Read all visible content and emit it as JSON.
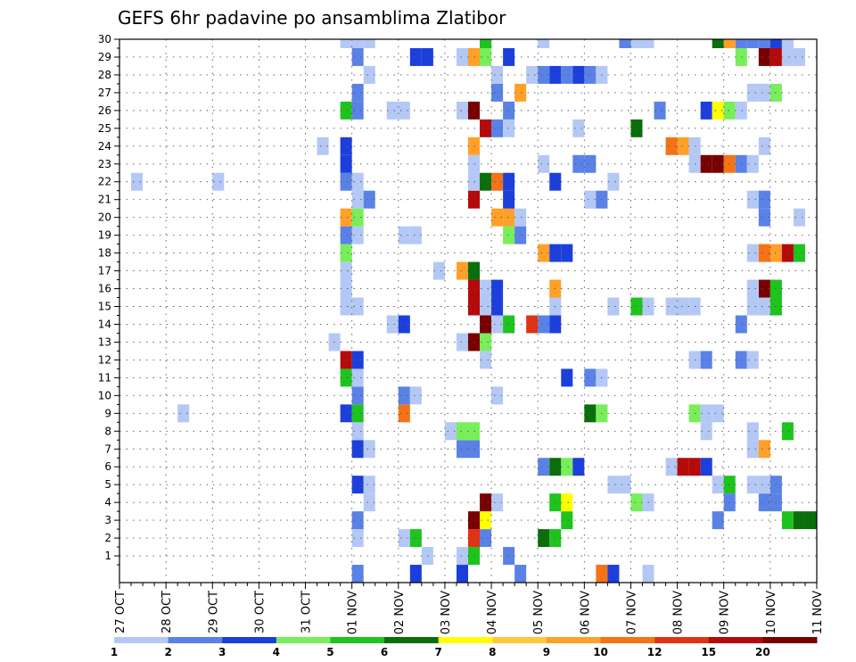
{
  "chart_data": {
    "type": "heatmap",
    "title": "GEFS 6hr padavine po ansamblima Zlatibor",
    "y_ticks": [
      "1",
      "2",
      "3",
      "4",
      "5",
      "6",
      "7",
      "8",
      "9",
      "10",
      "11",
      "12",
      "13",
      "14",
      "15",
      "16",
      "17",
      "18",
      "19",
      "20",
      "21",
      "22",
      "23",
      "24",
      "25",
      "26",
      "27",
      "28",
      "29",
      "30"
    ],
    "x_ticks": [
      "27 OCT",
      "28 OCT",
      "29 OCT",
      "30 OCT",
      "31 OCT",
      "01 NOV",
      "02 NOV",
      "03 NOV",
      "04 NOV",
      "05 NOV",
      "06 NOV",
      "07 NOV",
      "08 NOV",
      "09 NOV",
      "10 NOV",
      "11 NOV"
    ],
    "x_steps_per_day": 4,
    "x_total_steps": 60,
    "y_min": 0,
    "y_max": 30,
    "colorbar": {
      "labels": [
        "1",
        "2",
        "3",
        "4",
        "5",
        "6",
        "7",
        "8",
        "9",
        "10",
        "12",
        "15",
        "20"
      ],
      "colors": [
        "#b4c8f5",
        "#5a82e6",
        "#1c3fdc",
        "#78ee5a",
        "#1ec31e",
        "#0a6e0a",
        "#ffff00",
        "#ffc83c",
        "#ffa028",
        "#f57314",
        "#e13214",
        "#b40a0a",
        "#780000"
      ]
    },
    "cells": [
      {
        "row": 0,
        "col": 20,
        "level": 2
      },
      {
        "row": 0,
        "col": 25,
        "level": 3
      },
      {
        "row": 0,
        "col": 29,
        "level": 3
      },
      {
        "row": 0,
        "col": 34,
        "level": 2
      },
      {
        "row": 0,
        "col": 41,
        "level": 10
      },
      {
        "row": 0,
        "col": 42,
        "level": 3
      },
      {
        "row": 0,
        "col": 45,
        "level": 1
      },
      {
        "row": 1,
        "col": 26,
        "level": 1
      },
      {
        "row": 1,
        "col": 29,
        "level": 1
      },
      {
        "row": 1,
        "col": 30,
        "level": 5
      },
      {
        "row": 1,
        "col": 33,
        "level": 2
      },
      {
        "row": 2,
        "col": 20,
        "level": 1
      },
      {
        "row": 2,
        "col": 24,
        "level": 1
      },
      {
        "row": 2,
        "col": 25,
        "level": 5
      },
      {
        "row": 2,
        "col": 30,
        "level": 12
      },
      {
        "row": 2,
        "col": 31,
        "level": 2
      },
      {
        "row": 2,
        "col": 36,
        "level": 6
      },
      {
        "row": 2,
        "col": 37,
        "level": 5
      },
      {
        "row": 3,
        "col": 20,
        "level": 2
      },
      {
        "row": 3,
        "col": 30,
        "level": 20
      },
      {
        "row": 3,
        "col": 31,
        "level": 7
      },
      {
        "row": 3,
        "col": 38,
        "level": 5
      },
      {
        "row": 3,
        "col": 51,
        "level": 2
      },
      {
        "row": 3,
        "col": 57,
        "level": 5
      },
      {
        "row": 3,
        "col": 58,
        "level": 6
      },
      {
        "row": 3,
        "col": 59,
        "level": 6
      },
      {
        "row": 4,
        "col": 21,
        "level": 1
      },
      {
        "row": 4,
        "col": 31,
        "level": 20
      },
      {
        "row": 4,
        "col": 32,
        "level": 1
      },
      {
        "row": 4,
        "col": 37,
        "level": 5
      },
      {
        "row": 4,
        "col": 38,
        "level": 7
      },
      {
        "row": 4,
        "col": 44,
        "level": 4
      },
      {
        "row": 4,
        "col": 45,
        "level": 1
      },
      {
        "row": 4,
        "col": 52,
        "level": 2
      },
      {
        "row": 4,
        "col": 55,
        "level": 2
      },
      {
        "row": 4,
        "col": 56,
        "level": 2
      },
      {
        "row": 5,
        "col": 20,
        "level": 3
      },
      {
        "row": 5,
        "col": 21,
        "level": 1
      },
      {
        "row": 5,
        "col": 42,
        "level": 1
      },
      {
        "row": 5,
        "col": 43,
        "level": 1
      },
      {
        "row": 5,
        "col": 51,
        "level": 1
      },
      {
        "row": 5,
        "col": 52,
        "level": 5
      },
      {
        "row": 5,
        "col": 54,
        "level": 1
      },
      {
        "row": 5,
        "col": 55,
        "level": 1
      },
      {
        "row": 5,
        "col": 56,
        "level": 2
      },
      {
        "row": 6,
        "col": 36,
        "level": 2
      },
      {
        "row": 6,
        "col": 37,
        "level": 6
      },
      {
        "row": 6,
        "col": 38,
        "level": 4
      },
      {
        "row": 6,
        "col": 39,
        "level": 3
      },
      {
        "row": 6,
        "col": 47,
        "level": 1
      },
      {
        "row": 6,
        "col": 48,
        "level": 15
      },
      {
        "row": 6,
        "col": 49,
        "level": 15
      },
      {
        "row": 6,
        "col": 50,
        "level": 3
      },
      {
        "row": 7,
        "col": 20,
        "level": 3
      },
      {
        "row": 7,
        "col": 21,
        "level": 1
      },
      {
        "row": 7,
        "col": 29,
        "level": 2
      },
      {
        "row": 7,
        "col": 30,
        "level": 2
      },
      {
        "row": 7,
        "col": 54,
        "level": 1
      },
      {
        "row": 7,
        "col": 55,
        "level": 9
      },
      {
        "row": 8,
        "col": 20,
        "level": 1
      },
      {
        "row": 8,
        "col": 28,
        "level": 1
      },
      {
        "row": 8,
        "col": 29,
        "level": 4
      },
      {
        "row": 8,
        "col": 30,
        "level": 4
      },
      {
        "row": 8,
        "col": 50,
        "level": 1
      },
      {
        "row": 8,
        "col": 54,
        "level": 1
      },
      {
        "row": 8,
        "col": 57,
        "level": 5
      },
      {
        "row": 9,
        "col": 5,
        "level": 1
      },
      {
        "row": 9,
        "col": 19,
        "level": 3
      },
      {
        "row": 9,
        "col": 20,
        "level": 5
      },
      {
        "row": 9,
        "col": 24,
        "level": 10
      },
      {
        "row": 9,
        "col": 40,
        "level": 6
      },
      {
        "row": 9,
        "col": 41,
        "level": 4
      },
      {
        "row": 9,
        "col": 49,
        "level": 4
      },
      {
        "row": 9,
        "col": 50,
        "level": 1
      },
      {
        "row": 9,
        "col": 51,
        "level": 1
      },
      {
        "row": 10,
        "col": 20,
        "level": 2
      },
      {
        "row": 10,
        "col": 24,
        "level": 2
      },
      {
        "row": 10,
        "col": 25,
        "level": 1
      },
      {
        "row": 10,
        "col": 32,
        "level": 1
      },
      {
        "row": 11,
        "col": 19,
        "level": 5
      },
      {
        "row": 11,
        "col": 20,
        "level": 1
      },
      {
        "row": 11,
        "col": 38,
        "level": 3
      },
      {
        "row": 11,
        "col": 40,
        "level": 2
      },
      {
        "row": 11,
        "col": 41,
        "level": 1
      },
      {
        "row": 12,
        "col": 19,
        "level": 15
      },
      {
        "row": 12,
        "col": 20,
        "level": 3
      },
      {
        "row": 12,
        "col": 31,
        "level": 1
      },
      {
        "row": 12,
        "col": 49,
        "level": 1
      },
      {
        "row": 12,
        "col": 50,
        "level": 2
      },
      {
        "row": 12,
        "col": 53,
        "level": 2
      },
      {
        "row": 12,
        "col": 54,
        "level": 1
      },
      {
        "row": 13,
        "col": 18,
        "level": 1
      },
      {
        "row": 13,
        "col": 29,
        "level": 1
      },
      {
        "row": 13,
        "col": 30,
        "level": 20
      },
      {
        "row": 13,
        "col": 31,
        "level": 4
      },
      {
        "row": 14,
        "col": 23,
        "level": 1
      },
      {
        "row": 14,
        "col": 24,
        "level": 3
      },
      {
        "row": 14,
        "col": 31,
        "level": 20
      },
      {
        "row": 14,
        "col": 32,
        "level": 1
      },
      {
        "row": 14,
        "col": 33,
        "level": 5
      },
      {
        "row": 14,
        "col": 35,
        "level": 12
      },
      {
        "row": 14,
        "col": 36,
        "level": 2
      },
      {
        "row": 14,
        "col": 37,
        "level": 3
      },
      {
        "row": 14,
        "col": 53,
        "level": 2
      },
      {
        "row": 15,
        "col": 19,
        "level": 1
      },
      {
        "row": 15,
        "col": 20,
        "level": 1
      },
      {
        "row": 15,
        "col": 30,
        "level": 15
      },
      {
        "row": 15,
        "col": 31,
        "level": 1
      },
      {
        "row": 15,
        "col": 32,
        "level": 3
      },
      {
        "row": 15,
        "col": 37,
        "level": 1
      },
      {
        "row": 15,
        "col": 42,
        "level": 1
      },
      {
        "row": 15,
        "col": 44,
        "level": 5
      },
      {
        "row": 15,
        "col": 45,
        "level": 1
      },
      {
        "row": 15,
        "col": 47,
        "level": 1
      },
      {
        "row": 15,
        "col": 48,
        "level": 1
      },
      {
        "row": 15,
        "col": 49,
        "level": 1
      },
      {
        "row": 15,
        "col": 54,
        "level": 1
      },
      {
        "row": 15,
        "col": 55,
        "level": 1
      },
      {
        "row": 15,
        "col": 56,
        "level": 5
      },
      {
        "row": 16,
        "col": 19,
        "level": 1
      },
      {
        "row": 16,
        "col": 30,
        "level": 15
      },
      {
        "row": 16,
        "col": 31,
        "level": 1
      },
      {
        "row": 16,
        "col": 32,
        "level": 3
      },
      {
        "row": 16,
        "col": 37,
        "level": 9
      },
      {
        "row": 16,
        "col": 55,
        "level": 20
      },
      {
        "row": 16,
        "col": 56,
        "level": 5
      },
      {
        "row": 16,
        "col": 54,
        "level": 1
      },
      {
        "row": 17,
        "col": 19,
        "level": 1
      },
      {
        "row": 17,
        "col": 27,
        "level": 1
      },
      {
        "row": 17,
        "col": 29,
        "level": 9
      },
      {
        "row": 17,
        "col": 30,
        "level": 6
      },
      {
        "row": 18,
        "col": 19,
        "level": 4
      },
      {
        "row": 18,
        "col": 36,
        "level": 9
      },
      {
        "row": 18,
        "col": 37,
        "level": 3
      },
      {
        "row": 18,
        "col": 38,
        "level": 3
      },
      {
        "row": 18,
        "col": 54,
        "level": 1
      },
      {
        "row": 18,
        "col": 55,
        "level": 10
      },
      {
        "row": 18,
        "col": 56,
        "level": 9
      },
      {
        "row": 18,
        "col": 57,
        "level": 15
      },
      {
        "row": 18,
        "col": 58,
        "level": 5
      },
      {
        "row": 19,
        "col": 19,
        "level": 2
      },
      {
        "row": 19,
        "col": 20,
        "level": 1
      },
      {
        "row": 19,
        "col": 24,
        "level": 1
      },
      {
        "row": 19,
        "col": 25,
        "level": 1
      },
      {
        "row": 19,
        "col": 33,
        "level": 4
      },
      {
        "row": 19,
        "col": 34,
        "level": 2
      },
      {
        "row": 20,
        "col": 19,
        "level": 9
      },
      {
        "row": 20,
        "col": 20,
        "level": 4
      },
      {
        "row": 20,
        "col": 32,
        "level": 9
      },
      {
        "row": 20,
        "col": 33,
        "level": 9
      },
      {
        "row": 20,
        "col": 34,
        "level": 1
      },
      {
        "row": 20,
        "col": 55,
        "level": 2
      },
      {
        "row": 20,
        "col": 58,
        "level": 1
      },
      {
        "row": 21,
        "col": 20,
        "level": 1
      },
      {
        "row": 21,
        "col": 21,
        "level": 2
      },
      {
        "row": 21,
        "col": 30,
        "level": 15
      },
      {
        "row": 21,
        "col": 33,
        "level": 3
      },
      {
        "row": 21,
        "col": 40,
        "level": 1
      },
      {
        "row": 21,
        "col": 41,
        "level": 2
      },
      {
        "row": 21,
        "col": 54,
        "level": 1
      },
      {
        "row": 21,
        "col": 55,
        "level": 2
      },
      {
        "row": 22,
        "col": 1,
        "level": 1
      },
      {
        "row": 22,
        "col": 8,
        "level": 1
      },
      {
        "row": 22,
        "col": 19,
        "level": 2
      },
      {
        "row": 22,
        "col": 20,
        "level": 1
      },
      {
        "row": 22,
        "col": 30,
        "level": 1
      },
      {
        "row": 22,
        "col": 31,
        "level": 6
      },
      {
        "row": 22,
        "col": 32,
        "level": 10
      },
      {
        "row": 22,
        "col": 33,
        "level": 3
      },
      {
        "row": 22,
        "col": 37,
        "level": 3
      },
      {
        "row": 22,
        "col": 42,
        "level": 1
      },
      {
        "row": 23,
        "col": 19,
        "level": 3
      },
      {
        "row": 23,
        "col": 30,
        "level": 1
      },
      {
        "row": 23,
        "col": 36,
        "level": 1
      },
      {
        "row": 23,
        "col": 39,
        "level": 2
      },
      {
        "row": 23,
        "col": 40,
        "level": 2
      },
      {
        "row": 23,
        "col": 49,
        "level": 1
      },
      {
        "row": 23,
        "col": 50,
        "level": 20
      },
      {
        "row": 23,
        "col": 51,
        "level": 20
      },
      {
        "row": 23,
        "col": 52,
        "level": 10
      },
      {
        "row": 23,
        "col": 53,
        "level": 2
      },
      {
        "row": 23,
        "col": 54,
        "level": 1
      },
      {
        "row": 24,
        "col": 17,
        "level": 1
      },
      {
        "row": 24,
        "col": 19,
        "level": 3
      },
      {
        "row": 24,
        "col": 30,
        "level": 9
      },
      {
        "row": 24,
        "col": 47,
        "level": 10
      },
      {
        "row": 24,
        "col": 48,
        "level": 9
      },
      {
        "row": 24,
        "col": 49,
        "level": 1
      },
      {
        "row": 24,
        "col": 55,
        "level": 1
      },
      {
        "row": 25,
        "col": 31,
        "level": 15
      },
      {
        "row": 25,
        "col": 32,
        "level": 2
      },
      {
        "row": 25,
        "col": 33,
        "level": 1
      },
      {
        "row": 25,
        "col": 39,
        "level": 1
      },
      {
        "row": 25,
        "col": 44,
        "level": 6
      },
      {
        "row": 26,
        "col": 19,
        "level": 5
      },
      {
        "row": 26,
        "col": 20,
        "level": 2
      },
      {
        "row": 26,
        "col": 23,
        "level": 1
      },
      {
        "row": 26,
        "col": 24,
        "level": 1
      },
      {
        "row": 26,
        "col": 29,
        "level": 1
      },
      {
        "row": 26,
        "col": 30,
        "level": 20
      },
      {
        "row": 26,
        "col": 33,
        "level": 2
      },
      {
        "row": 26,
        "col": 46,
        "level": 2
      },
      {
        "row": 26,
        "col": 50,
        "level": 3
      },
      {
        "row": 26,
        "col": 51,
        "level": 7
      },
      {
        "row": 26,
        "col": 52,
        "level": 4
      },
      {
        "row": 26,
        "col": 53,
        "level": 1
      },
      {
        "row": 27,
        "col": 20,
        "level": 2
      },
      {
        "row": 27,
        "col": 32,
        "level": 2
      },
      {
        "row": 27,
        "col": 34,
        "level": 9
      },
      {
        "row": 27,
        "col": 54,
        "level": 1
      },
      {
        "row": 27,
        "col": 55,
        "level": 1
      },
      {
        "row": 27,
        "col": 56,
        "level": 4
      },
      {
        "row": 28,
        "col": 21,
        "level": 1
      },
      {
        "row": 28,
        "col": 32,
        "level": 1
      },
      {
        "row": 28,
        "col": 35,
        "level": 1
      },
      {
        "row": 28,
        "col": 36,
        "level": 2
      },
      {
        "row": 28,
        "col": 37,
        "level": 3
      },
      {
        "row": 28,
        "col": 38,
        "level": 2
      },
      {
        "row": 28,
        "col": 39,
        "level": 3
      },
      {
        "row": 28,
        "col": 40,
        "level": 2
      },
      {
        "row": 28,
        "col": 41,
        "level": 1
      },
      {
        "row": 29,
        "col": 20,
        "level": 2
      },
      {
        "row": 29,
        "col": 25,
        "level": 3
      },
      {
        "row": 29,
        "col": 26,
        "level": 3
      },
      {
        "row": 29,
        "col": 29,
        "level": 1
      },
      {
        "row": 29,
        "col": 30,
        "level": 9
      },
      {
        "row": 29,
        "col": 31,
        "level": 4
      },
      {
        "row": 29,
        "col": 33,
        "level": 3
      },
      {
        "row": 29,
        "col": 53,
        "level": 4
      },
      {
        "row": 29,
        "col": 55,
        "level": 20
      },
      {
        "row": 29,
        "col": 56,
        "level": 15
      },
      {
        "row": 29,
        "col": 57,
        "level": 1
      },
      {
        "row": 29,
        "col": 58,
        "level": 1
      },
      {
        "row": 30,
        "col": 19,
        "level": 1
      },
      {
        "row": 30,
        "col": 20,
        "level": 1
      },
      {
        "row": 30,
        "col": 21,
        "level": 1
      },
      {
        "row": 30,
        "col": 31,
        "level": 5
      },
      {
        "row": 30,
        "col": 36,
        "level": 1
      },
      {
        "row": 30,
        "col": 43,
        "level": 2
      },
      {
        "row": 30,
        "col": 44,
        "level": 1
      },
      {
        "row": 30,
        "col": 45,
        "level": 1
      },
      {
        "row": 30,
        "col": 51,
        "level": 6
      },
      {
        "row": 30,
        "col": 52,
        "level": 9
      },
      {
        "row": 30,
        "col": 53,
        "level": 2
      },
      {
        "row": 30,
        "col": 54,
        "level": 2
      },
      {
        "row": 30,
        "col": 55,
        "level": 2
      },
      {
        "row": 30,
        "col": 56,
        "level": 3
      },
      {
        "row": 30,
        "col": 57,
        "level": 1
      }
    ]
  }
}
